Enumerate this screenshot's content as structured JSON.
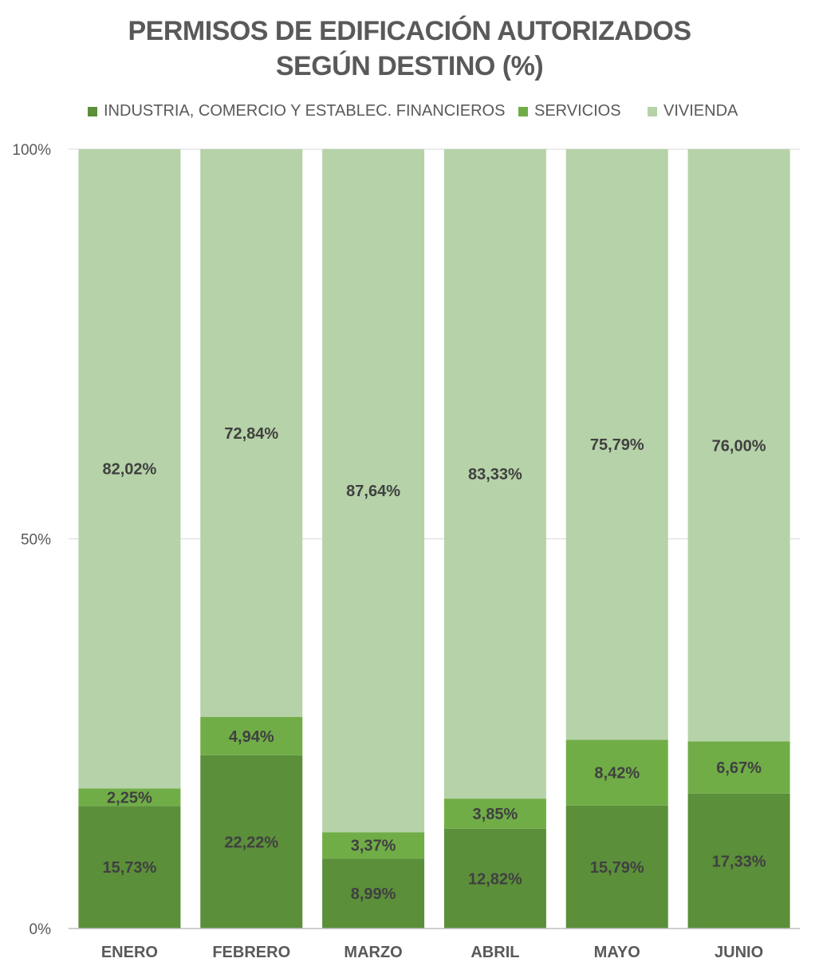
{
  "chart_data": {
    "type": "bar",
    "stacked": true,
    "normalized": true,
    "title_line1": "PERMISOS DE EDIFICACIÓN AUTORIZADOS",
    "title_line2": "SEGÚN DESTINO (%)",
    "categories": [
      "ENERO",
      "FEBRERO",
      "MARZO",
      "ABRIL",
      "MAYO",
      "JUNIO"
    ],
    "series": [
      {
        "name": "INDUSTRIA, COMERCIO Y ESTABLEC. FINANCIEROS",
        "color": "#5b8f3a",
        "values": [
          15.73,
          22.22,
          8.99,
          12.82,
          15.79,
          17.33
        ],
        "labels": [
          "15,73%",
          "22,22%",
          "8,99%",
          "12,82%",
          "15,79%",
          "17,33%"
        ]
      },
      {
        "name": "SERVICIOS",
        "color": "#70ad47",
        "values": [
          2.25,
          4.94,
          3.37,
          3.85,
          8.42,
          6.67
        ],
        "labels": [
          "2,25%",
          "4,94%",
          "3,37%",
          "3,85%",
          "8,42%",
          "6,67%"
        ]
      },
      {
        "name": "VIVIENDA",
        "color": "#b6d2a8",
        "values": [
          82.02,
          72.84,
          87.64,
          83.33,
          75.79,
          76.0
        ],
        "labels": [
          "82,02%",
          "72,84%",
          "87,64%",
          "83,33%",
          "75,79%",
          "76,00%"
        ]
      }
    ],
    "yticks": [
      "0%",
      "50%",
      "100%"
    ],
    "ylim": [
      0,
      100
    ],
    "grid": true,
    "legend_position": "top"
  }
}
